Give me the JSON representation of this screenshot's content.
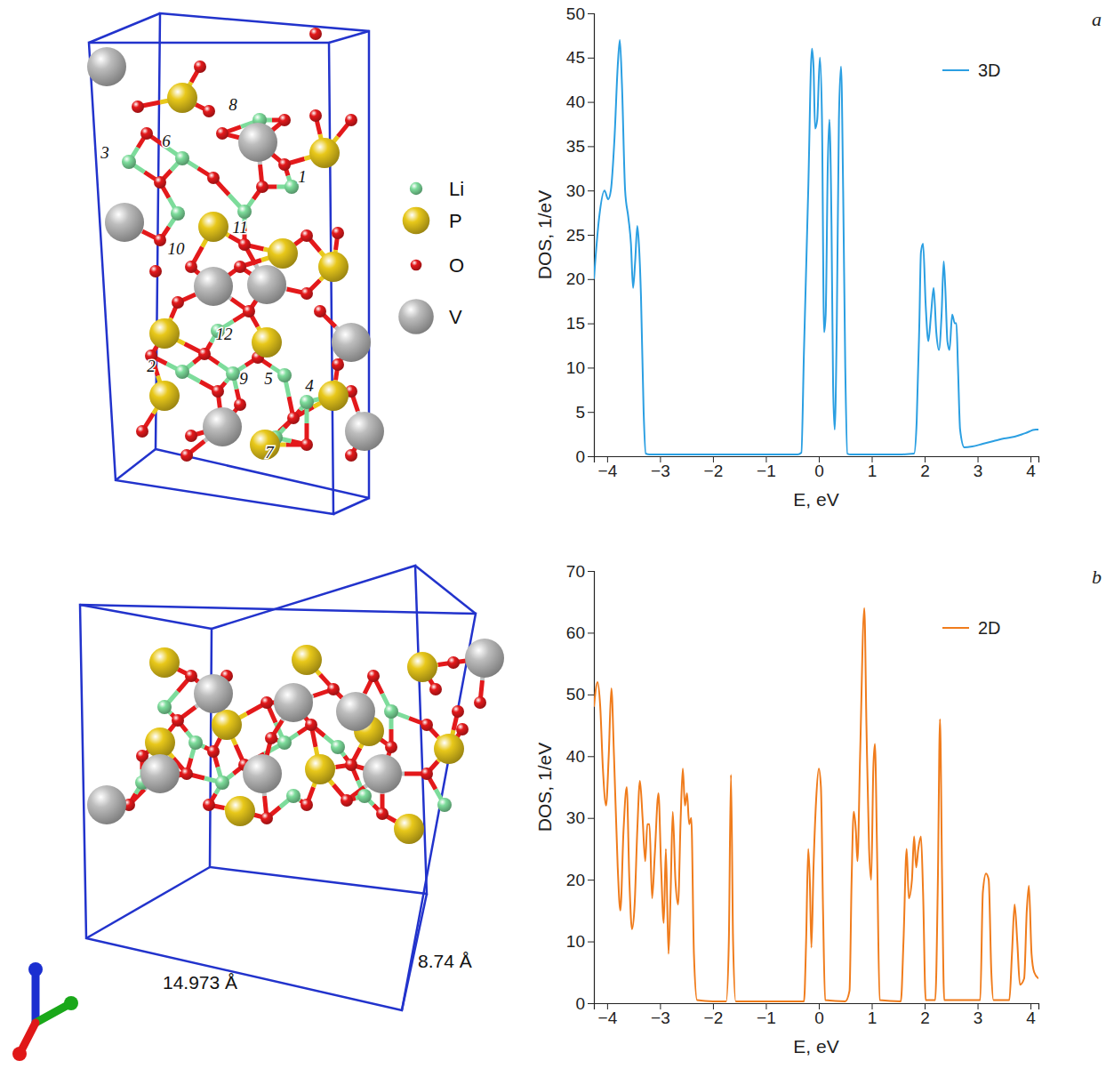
{
  "chart_data": [
    {
      "type": "line",
      "annotations": [
        "a"
      ],
      "xlabel": "E, eV",
      "ylabel": "DOS, 1/eV",
      "xlim": [
        -4.25,
        4.15
      ],
      "ylim": [
        0,
        50
      ],
      "xticks": [
        {
          "value": -4,
          "label": "−4"
        },
        {
          "value": -3,
          "label": "−3"
        },
        {
          "value": -2,
          "label": "−2"
        },
        {
          "value": -1,
          "label": "−1"
        },
        0,
        1,
        2,
        3,
        4
      ],
      "yticks": [
        0,
        5,
        10,
        15,
        20,
        25,
        30,
        35,
        40,
        45,
        50
      ],
      "legend": "upper right",
      "x": [
        -4.25,
        -4.15,
        -4.05,
        -3.98,
        -3.93,
        -3.86,
        -3.8,
        -3.76,
        -3.72,
        -3.66,
        -3.6,
        -3.55,
        -3.51,
        -3.47,
        -3.43,
        -3.4,
        -3.36,
        -3.31,
        -3.27,
        -3.2,
        -2.0,
        -1.0,
        -0.4,
        -0.33,
        -0.28,
        -0.2,
        -0.13,
        -0.1,
        -0.07,
        -0.03,
        0.02,
        0.06,
        0.1,
        0.13,
        0.17,
        0.2,
        0.24,
        0.27,
        0.3,
        0.34,
        0.38,
        0.42,
        0.46,
        0.5,
        0.54,
        0.6,
        1.0,
        1.5,
        1.8,
        1.85,
        1.9,
        1.93,
        1.97,
        2.02,
        2.07,
        2.12,
        2.17,
        2.22,
        2.27,
        2.32,
        2.36,
        2.39,
        2.43,
        2.47,
        2.52,
        2.57,
        2.6,
        2.63,
        2.67,
        2.75,
        2.9,
        3.1,
        3.3,
        3.5,
        3.7,
        3.9,
        4.1,
        4.15
      ],
      "series": [
        {
          "name": "3D",
          "color": "#2b9fe2",
          "values": [
            20,
            27,
            30,
            29,
            30,
            36,
            44,
            47,
            42,
            30,
            27,
            24,
            19,
            22,
            26,
            24,
            18,
            5,
            0.3,
            0.2,
            0.2,
            0.2,
            0.2,
            0.4,
            12,
            30,
            46,
            44,
            37,
            38,
            45,
            38,
            14,
            16,
            33,
            38,
            26,
            8,
            3,
            15,
            38,
            44,
            30,
            10,
            0.3,
            0.2,
            0.2,
            0.2,
            0.3,
            4,
            15,
            23,
            24,
            17,
            13,
            16,
            19,
            14,
            12,
            16,
            22,
            19,
            13,
            12,
            16,
            15,
            15,
            10,
            3,
            1,
            1.1,
            1.4,
            1.7,
            2,
            2.2,
            2.6,
            3,
            3
          ]
        }
      ]
    },
    {
      "type": "line",
      "annotations": [
        "b"
      ],
      "xlabel": "E, eV",
      "ylabel": "DOS, 1/eV",
      "xlim": [
        -4.25,
        4.15
      ],
      "ylim": [
        0,
        70
      ],
      "xticks": [
        {
          "value": -4,
          "label": "−4"
        },
        {
          "value": -3,
          "label": "−3"
        },
        {
          "value": -2,
          "label": "−2"
        },
        {
          "value": -1,
          "label": "−1"
        },
        0,
        1,
        2,
        3,
        4
      ],
      "yticks": [
        0,
        10,
        20,
        30,
        40,
        50,
        60,
        70
      ],
      "legend": "upper right",
      "x": [
        -4.25,
        -4.18,
        -4.13,
        -4.08,
        -4.02,
        -3.97,
        -3.92,
        -3.87,
        -3.8,
        -3.75,
        -3.69,
        -3.63,
        -3.58,
        -3.53,
        -3.48,
        -3.43,
        -3.38,
        -3.33,
        -3.28,
        -3.24,
        -3.2,
        -3.15,
        -3.1,
        -3.03,
        -2.98,
        -2.93,
        -2.89,
        -2.84,
        -2.8,
        -2.76,
        -2.71,
        -2.66,
        -2.61,
        -2.57,
        -2.53,
        -2.49,
        -2.45,
        -2.41,
        -2.36,
        -2.3,
        -2.0,
        -1.75,
        -1.7,
        -1.66,
        -1.62,
        -1.57,
        -1.0,
        -0.28,
        -0.24,
        -0.2,
        -0.17,
        -0.14,
        -0.1,
        -0.05,
        0.0,
        0.04,
        0.08,
        0.12,
        0.5,
        0.58,
        0.62,
        0.66,
        0.7,
        0.73,
        0.78,
        0.86,
        0.9,
        0.95,
        0.99,
        1.03,
        1.06,
        1.1,
        1.15,
        1.55,
        1.6,
        1.66,
        1.7,
        1.76,
        1.8,
        1.84,
        1.88,
        1.93,
        1.97,
        2.02,
        2.2,
        2.25,
        2.29,
        2.33,
        2.37,
        3.05,
        3.1,
        3.16,
        3.21,
        3.26,
        3.3,
        3.6,
        3.65,
        3.7,
        3.75,
        3.8,
        3.88,
        3.93,
        3.97,
        4.02,
        4.07,
        4.15
      ],
      "series": [
        {
          "name": "2D",
          "color": "#f07c1c",
          "values": [
            48,
            52,
            48,
            38,
            32,
            40,
            51,
            40,
            22,
            15,
            28,
            35,
            20,
            12,
            16,
            28,
            36,
            30,
            23,
            29,
            29,
            17,
            24,
            34,
            22,
            13,
            25,
            8,
            18,
            31,
            20,
            16,
            30,
            38,
            32,
            34,
            29,
            30,
            8,
            0.5,
            0.3,
            0.3,
            10,
            37,
            10,
            0.3,
            0.3,
            0.3,
            10,
            25,
            20,
            9,
            22,
            33,
            38,
            35,
            15,
            0.5,
            0.3,
            2,
            20,
            31,
            28,
            23,
            40,
            64,
            45,
            25,
            20,
            38,
            42,
            25,
            0.5,
            0.3,
            10,
            25,
            17,
            20,
            27,
            22,
            25,
            27,
            18,
            0.5,
            0.5,
            20,
            46,
            20,
            0.5,
            0.5,
            18,
            21,
            20,
            5,
            0.5,
            0.5,
            8,
            16,
            10,
            3,
            4,
            15,
            19,
            8,
            5,
            4
          ]
        }
      ]
    }
  ],
  "structure": {
    "elements": [
      {
        "name": "Li",
        "color": "#7ddc9b"
      },
      {
        "name": "P",
        "color": "#e8c81a"
      },
      {
        "name": "O",
        "color": "#e3191b"
      },
      {
        "name": "V",
        "color": "#bdbdbd"
      }
    ],
    "atom_labels": [
      "1",
      "2",
      "3",
      "4",
      "5",
      "6",
      "7",
      "8",
      "9",
      "10",
      "11",
      "12"
    ],
    "dimensions": [
      "14.973 Å",
      "8.74 Å"
    ]
  }
}
